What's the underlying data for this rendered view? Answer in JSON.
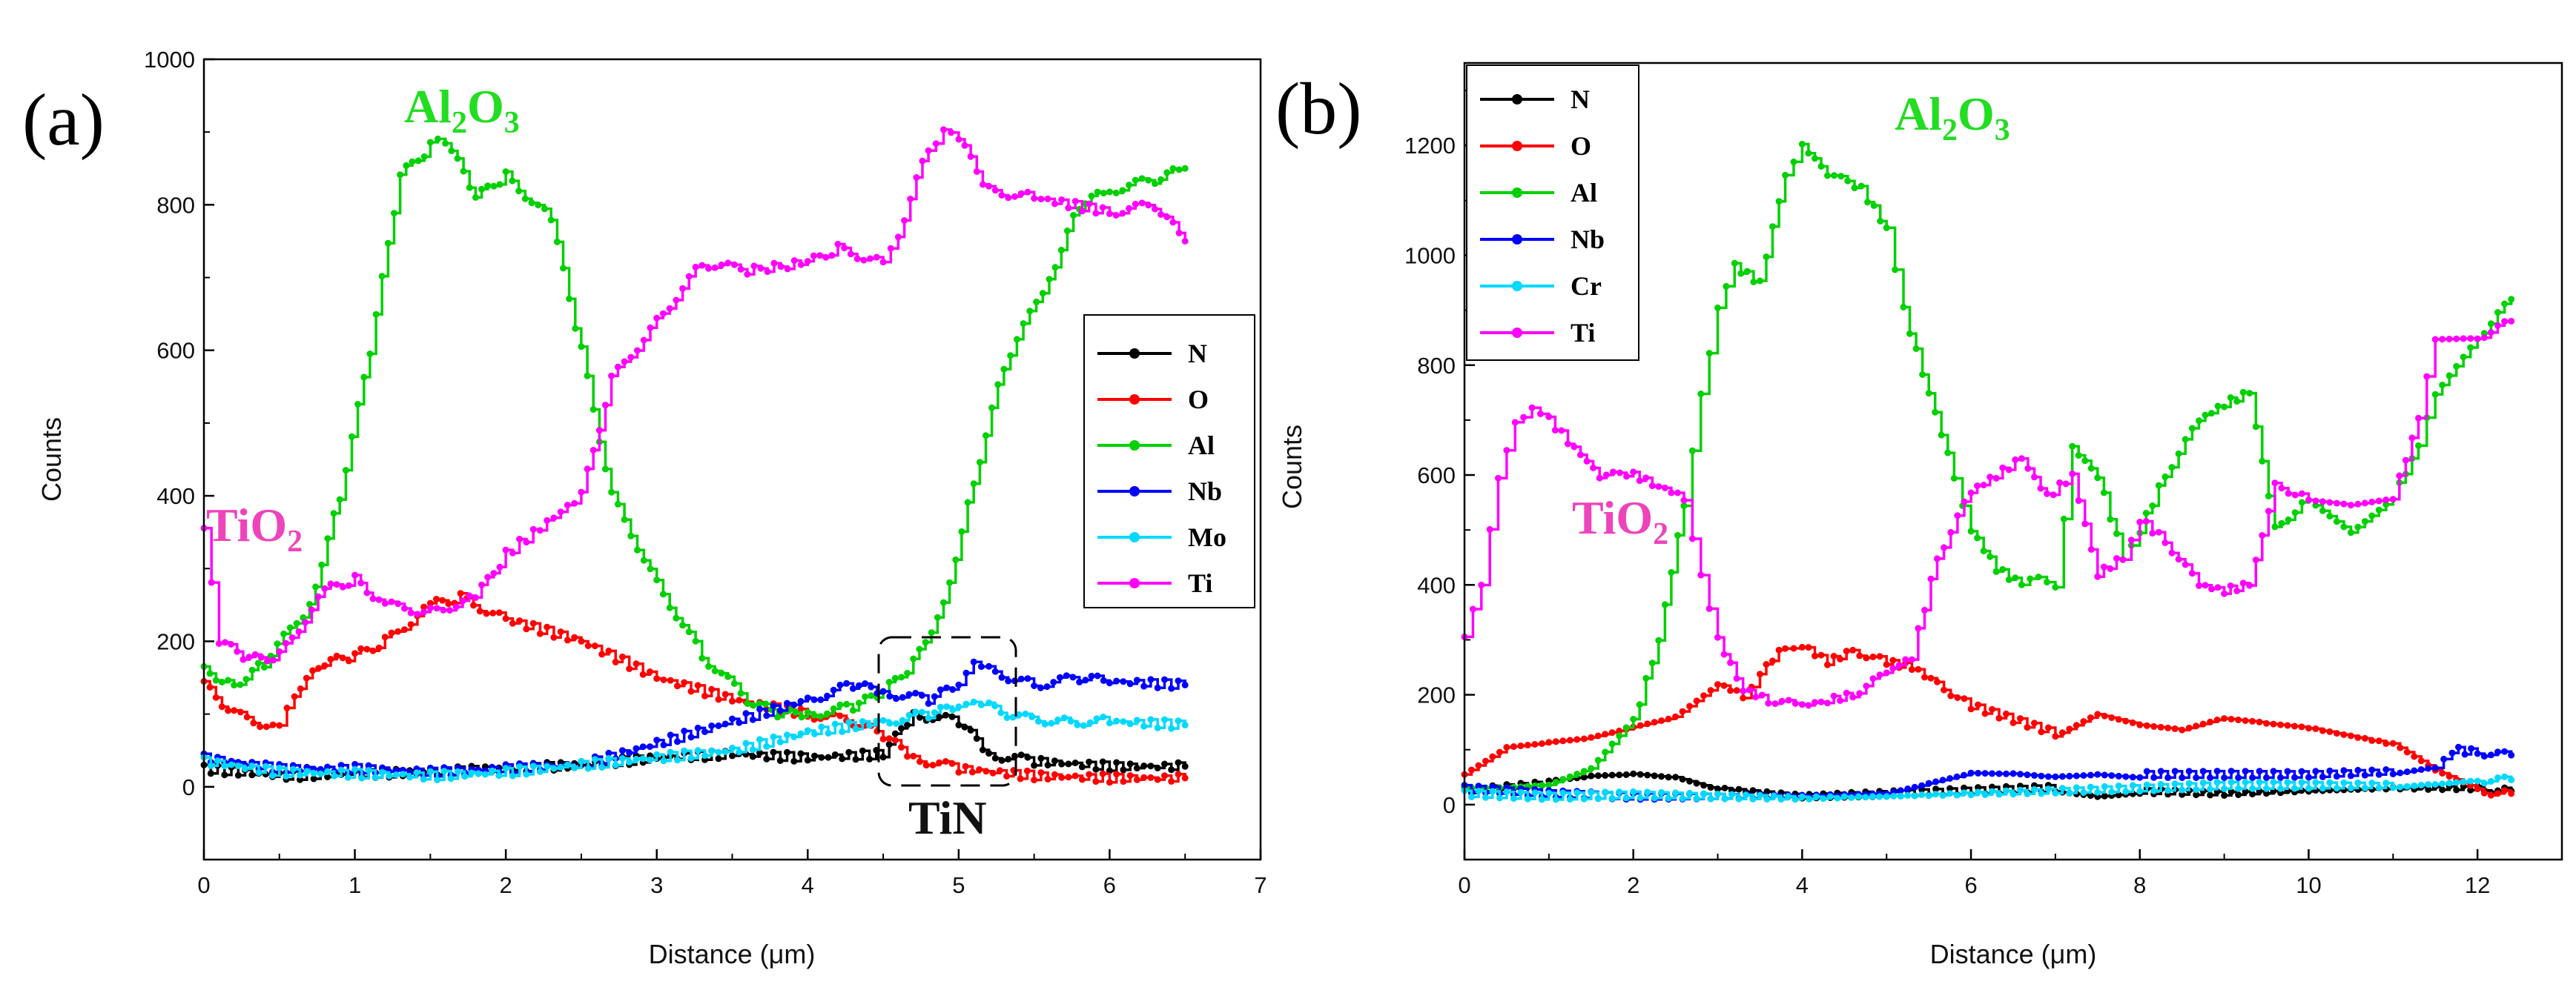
{
  "chart_data": [
    {
      "type": "line",
      "panel_label": "(a)",
      "xlabel": "Distance (μm)",
      "ylabel": "Counts",
      "xlim": [
        0,
        7
      ],
      "ylim": [
        -100,
        1000
      ],
      "xticks": [
        0,
        1,
        2,
        3,
        4,
        5,
        6,
        7
      ],
      "yticks": [
        0,
        200,
        400,
        600,
        800,
        1000
      ],
      "legend_position": "right",
      "series": [
        {
          "name": "N",
          "color": "#000000",
          "x": [
            0,
            0.5,
            1,
            1.5,
            2,
            2.5,
            3,
            3.5,
            4,
            4.5,
            4.7,
            5,
            5.2,
            5.5,
            6,
            6.5
          ],
          "y": [
            25,
            15,
            18,
            20,
            25,
            30,
            40,
            45,
            40,
            45,
            100,
            90,
            45,
            35,
            28,
            28
          ]
        },
        {
          "name": "O",
          "color": "#ff0000",
          "x": [
            0,
            0.2,
            0.5,
            0.6,
            0.8,
            1,
            1.2,
            1.5,
            1.7,
            2,
            2.5,
            3,
            3.5,
            4,
            4.3,
            4.5,
            4.7,
            5,
            5.5,
            6,
            6.5
          ],
          "y": [
            140,
            100,
            80,
            130,
            170,
            180,
            200,
            250,
            260,
            230,
            200,
            150,
            120,
            100,
            90,
            70,
            40,
            25,
            15,
            12,
            12
          ]
        },
        {
          "name": "Al",
          "color": "#00d000",
          "x": [
            0,
            0.2,
            0.4,
            0.7,
            0.9,
            1.1,
            1.3,
            1.5,
            1.6,
            1.8,
            2,
            2.3,
            2.5,
            2.7,
            3,
            3.3,
            3.6,
            3.8,
            4,
            4.3,
            4.5,
            4.7,
            4.9,
            5.1,
            5.3,
            5.6,
            5.8,
            6,
            6.3,
            6.5
          ],
          "y": [
            160,
            140,
            170,
            250,
            400,
            600,
            840,
            880,
            890,
            810,
            840,
            780,
            600,
            400,
            280,
            180,
            120,
            100,
            100,
            110,
            130,
            170,
            250,
            420,
            580,
            700,
            800,
            820,
            835,
            850
          ]
        },
        {
          "name": "Nb",
          "color": "#0000ff",
          "x": [
            0,
            0.5,
            1,
            1.5,
            2,
            2.5,
            3,
            3.5,
            4,
            4.3,
            4.5,
            4.8,
            5,
            5.1,
            5.2,
            5.5,
            5.8,
            6,
            6.5
          ],
          "y": [
            40,
            25,
            25,
            20,
            25,
            30,
            60,
            90,
            120,
            140,
            130,
            120,
            140,
            175,
            160,
            140,
            150,
            145,
            140
          ]
        },
        {
          "name": "Mo",
          "color": "#00d8ff",
          "x": [
            0,
            0.5,
            1,
            1.5,
            2,
            2.5,
            3,
            3.5,
            4,
            4.5,
            4.8,
            5,
            5.1,
            5.2,
            5.4,
            5.7,
            6,
            6.5
          ],
          "y": [
            35,
            20,
            18,
            15,
            20,
            30,
            40,
            50,
            75,
            90,
            100,
            110,
            120,
            110,
            95,
            90,
            90,
            85
          ]
        },
        {
          "name": "Ti",
          "color": "#ff00ff",
          "x": [
            0,
            0.1,
            0.3,
            0.5,
            0.8,
            1,
            1.2,
            1.5,
            1.8,
            2,
            2.5,
            2.7,
            3,
            3.3,
            3.6,
            4,
            4.2,
            4.5,
            4.6,
            4.8,
            4.9,
            5,
            5.2,
            5.5,
            6,
            6.3,
            6.5
          ],
          "y": [
            350,
            200,
            175,
            180,
            270,
            285,
            250,
            240,
            260,
            320,
            400,
            560,
            640,
            720,
            710,
            720,
            740,
            720,
            760,
            880,
            900,
            890,
            820,
            810,
            790,
            800,
            750
          ]
        }
      ],
      "annotations": [
        {
          "text": "Al",
          "sub": "2",
          "text2": "O",
          "sub2": "3",
          "color": "#22dd22"
        },
        {
          "text": "TiO",
          "sub": "2",
          "color": "#ee44bb"
        },
        {
          "text": "TiN",
          "color": "#111111"
        }
      ]
    },
    {
      "type": "line",
      "panel_label": "(b)",
      "xlabel": "Distance (μm)",
      "ylabel": "Counts",
      "xlim": [
        0,
        13
      ],
      "ylim": [
        -100,
        1350
      ],
      "xticks": [
        0,
        2,
        4,
        6,
        8,
        10,
        12
      ],
      "yticks": [
        0,
        200,
        400,
        600,
        800,
        1000,
        1200
      ],
      "legend_position": "top-left",
      "series": [
        {
          "name": "N",
          "color": "#000000",
          "x": [
            0,
            1,
            1.5,
            2,
            2.5,
            3,
            4,
            5,
            6,
            7,
            7.5,
            8,
            9,
            10,
            11,
            12,
            12.4
          ],
          "y": [
            25,
            40,
            50,
            55,
            50,
            30,
            15,
            20,
            25,
            30,
            20,
            25,
            20,
            25,
            30,
            30,
            25
          ]
        },
        {
          "name": "O",
          "color": "#ff0000",
          "x": [
            0,
            0.5,
            1,
            1.5,
            2,
            2.5,
            3,
            3.3,
            3.5,
            3.8,
            4,
            4.3,
            4.6,
            5,
            5.3,
            5.6,
            6,
            7,
            7.5,
            8,
            8.5,
            9,
            9.5,
            10,
            11,
            11.5,
            12,
            12.4
          ],
          "y": [
            50,
            100,
            110,
            120,
            140,
            160,
            220,
            200,
            240,
            290,
            290,
            260,
            280,
            260,
            250,
            220,
            180,
            130,
            170,
            150,
            140,
            160,
            150,
            140,
            110,
            60,
            25,
            20
          ]
        },
        {
          "name": "Al",
          "color": "#00d000",
          "x": [
            0,
            0.5,
            1,
            1.5,
            2,
            2.3,
            2.6,
            2.8,
            3,
            3.2,
            3.5,
            3.8,
            4,
            4.3,
            4.7,
            5,
            5.2,
            5.5,
            5.8,
            6,
            6.3,
            6.6,
            6.8,
            7,
            7.2,
            7.5,
            7.8,
            8,
            8.3,
            8.7,
            9,
            9.3,
            9.6,
            10,
            10.5,
            11,
            11.3,
            11.5,
            12,
            12.4
          ],
          "y": [
            25,
            25,
            30,
            60,
            150,
            300,
            550,
            750,
            900,
            980,
            950,
            1150,
            1200,
            1150,
            1120,
            1050,
            900,
            750,
            600,
            500,
            430,
            400,
            420,
            400,
            650,
            600,
            450,
            500,
            600,
            700,
            730,
            750,
            500,
            560,
            500,
            560,
            650,
            750,
            850,
            920
          ]
        },
        {
          "name": "Nb",
          "color": "#0000ff",
          "x": [
            0,
            1,
            2,
            3,
            4,
            5,
            5.5,
            6,
            6.5,
            7,
            7.5,
            8,
            9,
            10,
            11,
            11.5,
            11.7,
            12,
            12.4
          ],
          "y": [
            30,
            20,
            15,
            15,
            15,
            20,
            40,
            60,
            60,
            55,
            60,
            55,
            55,
            55,
            60,
            70,
            100,
            95,
            90
          ]
        },
        {
          "name": "Cr",
          "color": "#00d8ff",
          "x": [
            0,
            1,
            2,
            3,
            4,
            5,
            6,
            7,
            8,
            9,
            10,
            11,
            11.5,
            12,
            12.4
          ],
          "y": [
            20,
            15,
            18,
            15,
            12,
            15,
            20,
            25,
            30,
            35,
            35,
            35,
            40,
            45,
            45
          ]
        },
        {
          "name": "Ti",
          "color": "#ff00ff",
          "x": [
            0,
            0.2,
            0.4,
            0.6,
            0.8,
            1,
            1.3,
            1.6,
            2,
            2.3,
            2.6,
            2.8,
            3,
            3.3,
            3.6,
            4,
            4.3,
            4.6,
            5,
            5.3,
            5.6,
            6,
            6.3,
            6.6,
            6.9,
            7.2,
            7.5,
            7.8,
            8,
            8.3,
            8.7,
            9,
            9.3,
            9.6,
            10,
            10.5,
            11,
            11.3,
            11.5,
            12,
            12.4
          ],
          "y": [
            300,
            400,
            600,
            700,
            720,
            700,
            650,
            600,
            600,
            580,
            560,
            420,
            300,
            210,
            190,
            180,
            190,
            200,
            240,
            270,
            450,
            570,
            600,
            630,
            560,
            600,
            420,
            450,
            520,
            480,
            400,
            390,
            400,
            580,
            560,
            550,
            560,
            700,
            850,
            850,
            880
          ]
        }
      ],
      "annotations": [
        {
          "text": "Al",
          "sub": "2",
          "text2": "O",
          "sub2": "3",
          "color": "#22dd22"
        },
        {
          "text": "TiO",
          "sub": "2",
          "color": "#ee44bb"
        }
      ]
    }
  ]
}
